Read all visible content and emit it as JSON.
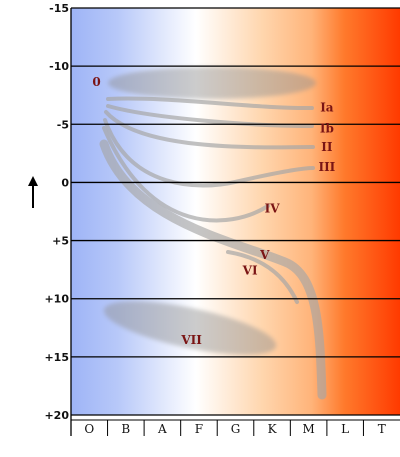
{
  "chart_data": {
    "type": "diagram",
    "title": "",
    "xlabel": "",
    "ylabel": "",
    "y_axis": {
      "ticks": [
        "-15",
        "-10",
        "-5",
        "0",
        "+5",
        "+10",
        "+15",
        "+20"
      ],
      "values": [
        -15,
        -10,
        -5,
        0,
        5,
        10,
        15,
        20
      ],
      "range": [
        -15,
        20
      ],
      "inverted": true,
      "arrow": "up"
    },
    "x_axis": {
      "categories": [
        "O",
        "B",
        "A",
        "F",
        "G",
        "K",
        "M",
        "L",
        "T"
      ]
    },
    "grid": true,
    "background_gradient": [
      "#9eb4f6",
      "#ffffff",
      "#ffd2a6",
      "#ff3a00"
    ],
    "luminosity_classes": [
      {
        "label": "0",
        "class": 0.7,
        "mag": -8.6
      },
      {
        "label": "Ia",
        "class": 7.0,
        "mag": -6.4
      },
      {
        "label": "Ib",
        "class": 7.0,
        "mag": -4.6
      },
      {
        "label": "II",
        "class": 7.0,
        "mag": -3.0
      },
      {
        "label": "III",
        "class": 7.0,
        "mag": -1.3
      },
      {
        "label": "IV",
        "class": 5.5,
        "mag": 2.3
      },
      {
        "label": "V",
        "class": 5.3,
        "mag": 6.3
      },
      {
        "label": "VI",
        "class": 4.9,
        "mag": 7.6
      },
      {
        "label": "VII",
        "class": 3.3,
        "mag": 13.6
      }
    ]
  }
}
